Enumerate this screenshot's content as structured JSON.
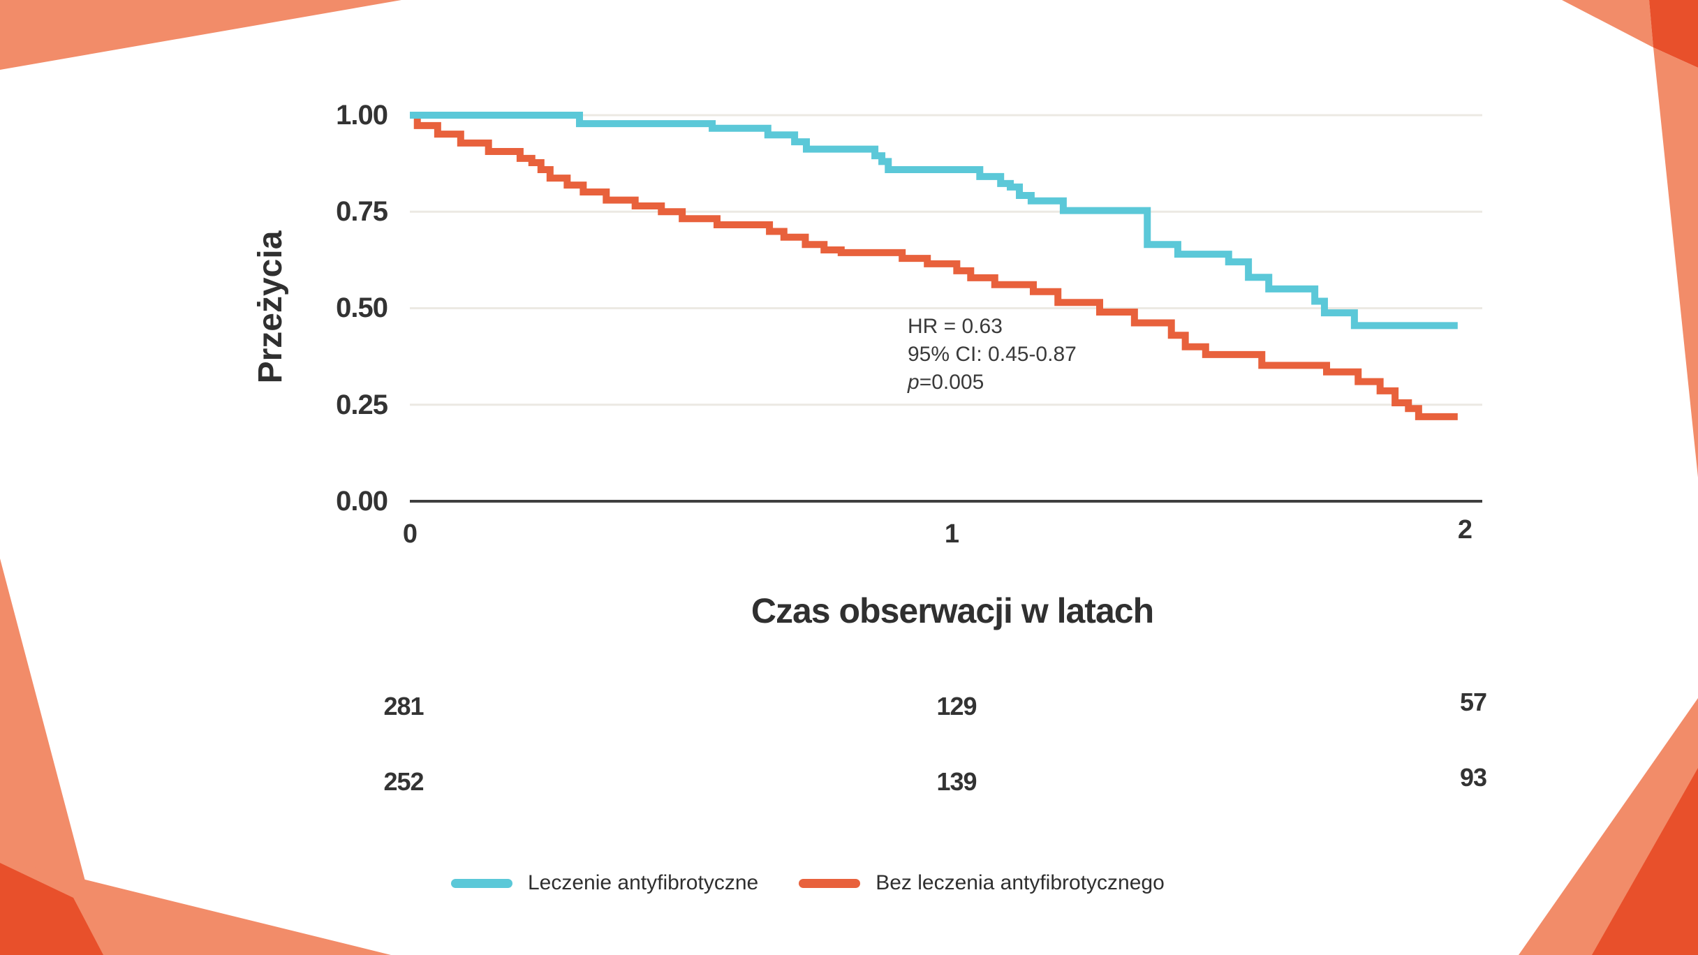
{
  "colors": {
    "salmon": "#F28C69",
    "accent_red": "#E8502B",
    "treated_blue": "#5BC8D8",
    "untreated_orange": "#E8613C",
    "grid": "#ECE9E3",
    "axis_line": "#3F3F3F",
    "text": "#333333"
  },
  "axis": {
    "y_label": "Przeżycia",
    "x_label": "Czas obserwacji w latach",
    "y_ticks": [
      "1.00",
      "0.75",
      "0.50",
      "0.25",
      "0.00"
    ],
    "x_ticks": [
      "0",
      "1",
      "2"
    ]
  },
  "annotation": {
    "line1": "HR = 0.63",
    "line2": "95% CI: 0.45-0.87",
    "p_label": "p",
    "p_value": "=0.005"
  },
  "risk_table": {
    "rows": [
      {
        "group": "Leczenie antyfibrotyczne",
        "counts": [
          "281",
          "129",
          "57"
        ]
      },
      {
        "group": "Bez leczenia antyfibrotycznego",
        "counts": [
          "252",
          "139",
          "93"
        ]
      }
    ]
  },
  "legend": {
    "items": [
      {
        "label": "Leczenie antyfibrotyczne",
        "color": "#5BC8D8"
      },
      {
        "label": "Bez leczenia antyfibrotycznego",
        "color": "#E8613C"
      }
    ]
  },
  "chart_data": {
    "type": "line",
    "subtype": "kaplan-meier-step",
    "title": "",
    "xlabel": "Czas obserwacji w latach",
    "ylabel": "Przeżycia",
    "xlim": [
      0,
      2
    ],
    "ylim": [
      0,
      1
    ],
    "x_ticks": [
      0,
      1,
      2
    ],
    "y_ticks": [
      0,
      0.25,
      0.5,
      0.75,
      1.0
    ],
    "grid": "horizontal",
    "legend_position": "bottom",
    "annotation_lines": [
      "HR = 0.63",
      "95% CI: 0.45-0.87",
      "p=0.005"
    ],
    "numbers_at_risk": {
      "times": [
        0,
        1,
        2
      ],
      "Leczenie antyfibrotyczne": [
        281,
        129,
        57
      ],
      "Bez leczenia antyfibrotycznego": [
        252,
        139,
        93
      ]
    },
    "series": [
      {
        "name": "Bez leczenia antyfibrotycznego",
        "color": "#E8613C",
        "end_x": 1.958,
        "steps": [
          [
            0,
            1.0
          ],
          [
            0.014,
            0.973
          ],
          [
            0.052,
            0.951
          ],
          [
            0.095,
            0.928
          ],
          [
            0.147,
            0.906
          ],
          [
            0.206,
            0.888
          ],
          [
            0.228,
            0.877
          ],
          [
            0.245,
            0.859
          ],
          [
            0.262,
            0.837
          ],
          [
            0.294,
            0.819
          ],
          [
            0.324,
            0.801
          ],
          [
            0.367,
            0.78
          ],
          [
            0.421,
            0.765
          ],
          [
            0.47,
            0.75
          ],
          [
            0.509,
            0.732
          ],
          [
            0.574,
            0.716
          ],
          [
            0.672,
            0.699
          ],
          [
            0.699,
            0.684
          ],
          [
            0.739,
            0.665
          ],
          [
            0.774,
            0.651
          ],
          [
            0.806,
            0.644
          ],
          [
            0.92,
            0.629
          ],
          [
            0.967,
            0.615
          ],
          [
            1.022,
            0.597
          ],
          [
            1.048,
            0.579
          ],
          [
            1.093,
            0.561
          ],
          [
            1.165,
            0.543
          ],
          [
            1.211,
            0.515
          ],
          [
            1.289,
            0.49
          ],
          [
            1.354,
            0.462
          ],
          [
            1.423,
            0.43
          ],
          [
            1.449,
            0.4
          ],
          [
            1.487,
            0.38
          ],
          [
            1.592,
            0.352
          ],
          [
            1.713,
            0.335
          ],
          [
            1.772,
            0.31
          ],
          [
            1.813,
            0.286
          ],
          [
            1.841,
            0.255
          ],
          [
            1.866,
            0.24
          ],
          [
            1.885,
            0.219
          ]
        ]
      },
      {
        "name": "Leczenie antyfibrotyczne",
        "color": "#5BC8D8",
        "end_x": 1.958,
        "steps": [
          [
            0,
            1.0
          ],
          [
            0.317,
            0.978
          ],
          [
            0.565,
            0.966
          ],
          [
            0.669,
            0.949
          ],
          [
            0.719,
            0.931
          ],
          [
            0.741,
            0.912
          ],
          [
            0.869,
            0.895
          ],
          [
            0.882,
            0.88
          ],
          [
            0.894,
            0.859
          ],
          [
            1.065,
            0.841
          ],
          [
            1.104,
            0.823
          ],
          [
            1.122,
            0.814
          ],
          [
            1.139,
            0.792
          ],
          [
            1.161,
            0.778
          ],
          [
            1.221,
            0.753
          ],
          [
            1.378,
            0.665
          ],
          [
            1.435,
            0.64
          ],
          [
            1.53,
            0.62
          ],
          [
            1.567,
            0.58
          ],
          [
            1.605,
            0.55
          ],
          [
            1.691,
            0.518
          ],
          [
            1.709,
            0.488
          ],
          [
            1.765,
            0.455
          ]
        ]
      }
    ]
  }
}
